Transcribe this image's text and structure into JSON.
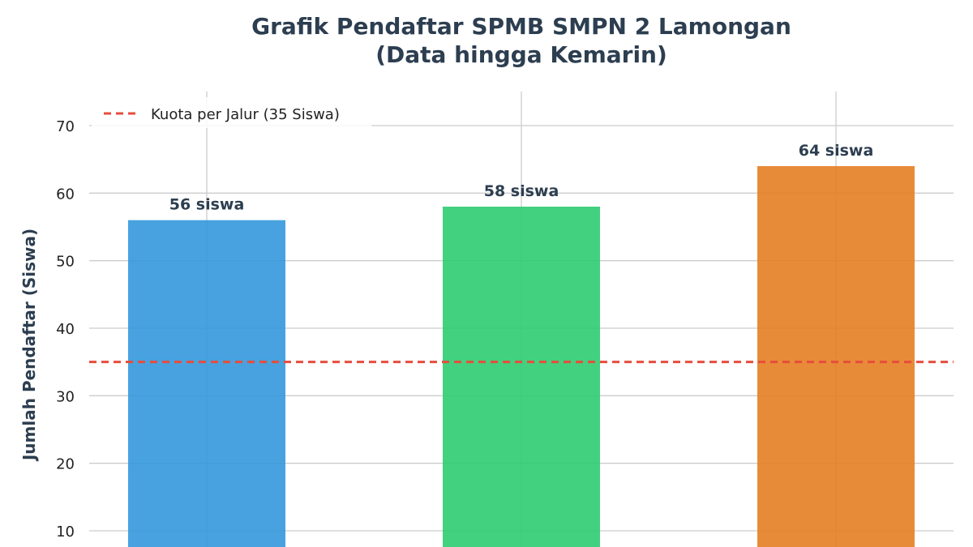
{
  "chart_data": {
    "type": "bar",
    "title_line1": "Grafik Pendaftar SPMB SMPN 2 Lamongan",
    "title_line2": "(Data hingga Kemarin)",
    "ylabel": "Jumlah Pendaftar (Siswa)",
    "xlabel": "",
    "ylim": [
      8,
      75
    ],
    "yticks": [
      10,
      20,
      30,
      40,
      50,
      60,
      70
    ],
    "grid": true,
    "legend_placement": "top-left",
    "bars": [
      {
        "value": 56,
        "label": "56 siswa",
        "color": "#3498db"
      },
      {
        "value": 58,
        "label": "58 siswa",
        "color": "#2ecc71"
      },
      {
        "value": 64,
        "label": "64 siswa",
        "color": "#e67e22"
      }
    ],
    "reference_line": {
      "value": 35,
      "label": "Kuota per Jalur (35 Siswa)",
      "color": "#e74c3c",
      "style": "dashed"
    }
  }
}
